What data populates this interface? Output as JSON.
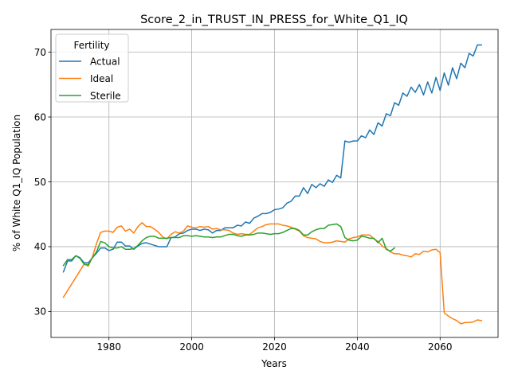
{
  "chart_data": {
    "type": "line",
    "title": "Score_2_in_TRUST_IN_PRESS_for_White_Q1_IQ",
    "xlabel": "Years",
    "ylabel": "% of White Q1_IQ Population",
    "xlim": [
      1966,
      2074
    ],
    "ylim": [
      26,
      73.5
    ],
    "xticks": [
      1980,
      2000,
      2020,
      2040,
      2060
    ],
    "yticks": [
      30,
      40,
      50,
      60,
      70
    ],
    "grid": true,
    "legend": {
      "title": "Fertility",
      "placement": "top-left"
    },
    "series": [
      {
        "name": "Actual",
        "color": "#1f77b4",
        "points": [
          [
            1969,
            36.1
          ],
          [
            1970,
            37.8
          ],
          [
            1971,
            37.8
          ],
          [
            1972,
            38.6
          ],
          [
            1973,
            38.3
          ],
          [
            1974,
            37.5
          ],
          [
            1975,
            37.5
          ],
          [
            1976,
            38.3
          ],
          [
            1977,
            39.0
          ],
          [
            1978,
            39.8
          ],
          [
            1979,
            39.8
          ],
          [
            1980,
            39.4
          ],
          [
            1981,
            39.6
          ],
          [
            1982,
            40.7
          ],
          [
            1983,
            40.7
          ],
          [
            1984,
            40.1
          ],
          [
            1985,
            40.1
          ],
          [
            1986,
            39.6
          ],
          [
            1987,
            40.1
          ],
          [
            1988,
            40.5
          ],
          [
            1989,
            40.6
          ],
          [
            1990,
            40.4
          ],
          [
            1991,
            40.2
          ],
          [
            1992,
            40.0
          ],
          [
            1993,
            40.0
          ],
          [
            1994,
            40.0
          ],
          [
            1995,
            41.4
          ],
          [
            1996,
            41.5
          ],
          [
            1997,
            42.0
          ],
          [
            1998,
            42.1
          ],
          [
            1999,
            42.5
          ],
          [
            2000,
            42.7
          ],
          [
            2001,
            42.7
          ],
          [
            2002,
            42.5
          ],
          [
            2003,
            42.7
          ],
          [
            2004,
            42.6
          ],
          [
            2005,
            42.1
          ],
          [
            2006,
            42.5
          ],
          [
            2007,
            42.5
          ],
          [
            2008,
            42.9
          ],
          [
            2009,
            42.9
          ],
          [
            2010,
            42.9
          ],
          [
            2011,
            43.3
          ],
          [
            2012,
            43.2
          ],
          [
            2013,
            43.8
          ],
          [
            2014,
            43.6
          ],
          [
            2015,
            44.4
          ],
          [
            2016,
            44.7
          ],
          [
            2017,
            45.1
          ],
          [
            2018,
            45.1
          ],
          [
            2019,
            45.3
          ],
          [
            2020,
            45.7
          ],
          [
            2021,
            45.8
          ],
          [
            2022,
            46.0
          ],
          [
            2023,
            46.7
          ],
          [
            2024,
            47.0
          ],
          [
            2025,
            47.8
          ],
          [
            2026,
            47.8
          ],
          [
            2027,
            49.1
          ],
          [
            2028,
            48.2
          ],
          [
            2029,
            49.6
          ],
          [
            2030,
            49.1
          ],
          [
            2031,
            49.7
          ],
          [
            2032,
            49.3
          ],
          [
            2033,
            50.3
          ],
          [
            2034,
            49.9
          ],
          [
            2035,
            51.0
          ],
          [
            2036,
            50.6
          ],
          [
            2037,
            56.3
          ],
          [
            2038,
            56.1
          ],
          [
            2039,
            56.3
          ],
          [
            2040,
            56.3
          ],
          [
            2041,
            57.1
          ],
          [
            2042,
            56.8
          ],
          [
            2043,
            58.0
          ],
          [
            2044,
            57.3
          ],
          [
            2045,
            59.1
          ],
          [
            2046,
            58.6
          ],
          [
            2047,
            60.5
          ],
          [
            2048,
            60.2
          ],
          [
            2049,
            62.2
          ],
          [
            2050,
            61.8
          ],
          [
            2051,
            63.7
          ],
          [
            2052,
            63.2
          ],
          [
            2053,
            64.6
          ],
          [
            2054,
            63.8
          ],
          [
            2055,
            65.0
          ],
          [
            2056,
            63.4
          ],
          [
            2057,
            65.4
          ],
          [
            2058,
            63.7
          ],
          [
            2059,
            66.1
          ],
          [
            2060,
            64.1
          ],
          [
            2061,
            66.8
          ],
          [
            2062,
            64.9
          ],
          [
            2063,
            67.6
          ],
          [
            2064,
            65.9
          ],
          [
            2065,
            68.3
          ],
          [
            2066,
            67.6
          ],
          [
            2067,
            69.8
          ],
          [
            2068,
            69.4
          ],
          [
            2069,
            71.1
          ],
          [
            2070,
            71.1
          ]
        ]
      },
      {
        "name": "Ideal",
        "color": "#ff7f0e",
        "points": [
          [
            1969,
            32.2
          ],
          [
            1974,
            37.3
          ],
          [
            1975,
            37.0
          ],
          [
            1976,
            38.4
          ],
          [
            1977,
            40.5
          ],
          [
            1978,
            42.2
          ],
          [
            1979,
            42.4
          ],
          [
            1980,
            42.4
          ],
          [
            1981,
            42.2
          ],
          [
            1982,
            43.0
          ],
          [
            1983,
            43.2
          ],
          [
            1984,
            42.4
          ],
          [
            1985,
            42.7
          ],
          [
            1986,
            42.1
          ],
          [
            1987,
            43.1
          ],
          [
            1988,
            43.7
          ],
          [
            1989,
            43.1
          ],
          [
            1990,
            43.1
          ],
          [
            1991,
            42.7
          ],
          [
            1992,
            42.2
          ],
          [
            1993,
            41.5
          ],
          [
            1994,
            41.2
          ],
          [
            1995,
            41.9
          ],
          [
            1996,
            42.3
          ],
          [
            1997,
            42.1
          ],
          [
            1998,
            42.4
          ],
          [
            1999,
            43.2
          ],
          [
            2000,
            43.0
          ],
          [
            2001,
            42.9
          ],
          [
            2002,
            43.1
          ],
          [
            2003,
            43.0
          ],
          [
            2004,
            43.1
          ],
          [
            2005,
            42.7
          ],
          [
            2006,
            42.8
          ],
          [
            2007,
            42.6
          ],
          [
            2008,
            42.6
          ],
          [
            2009,
            42.5
          ],
          [
            2010,
            42.1
          ],
          [
            2011,
            41.9
          ],
          [
            2012,
            42.0
          ],
          [
            2013,
            41.9
          ],
          [
            2014,
            41.9
          ],
          [
            2015,
            42.4
          ],
          [
            2016,
            42.9
          ],
          [
            2017,
            43.1
          ],
          [
            2018,
            43.4
          ],
          [
            2019,
            43.5
          ],
          [
            2020,
            43.5
          ],
          [
            2021,
            43.5
          ],
          [
            2022,
            43.3
          ],
          [
            2023,
            43.2
          ],
          [
            2024,
            43.0
          ],
          [
            2025,
            42.7
          ],
          [
            2026,
            42.4
          ],
          [
            2027,
            41.7
          ],
          [
            2028,
            41.4
          ],
          [
            2029,
            41.3
          ],
          [
            2030,
            41.2
          ],
          [
            2031,
            40.8
          ],
          [
            2032,
            40.6
          ],
          [
            2033,
            40.6
          ],
          [
            2034,
            40.7
          ],
          [
            2035,
            40.9
          ],
          [
            2036,
            40.8
          ],
          [
            2037,
            40.7
          ],
          [
            2038,
            41.2
          ],
          [
            2039,
            41.4
          ],
          [
            2040,
            41.5
          ],
          [
            2041,
            41.8
          ],
          [
            2042,
            41.8
          ],
          [
            2043,
            41.8
          ],
          [
            2044,
            41.2
          ],
          [
            2045,
            40.8
          ],
          [
            2046,
            40.1
          ],
          [
            2047,
            39.7
          ],
          [
            2048,
            39.2
          ],
          [
            2049,
            38.9
          ],
          [
            2050,
            38.9
          ],
          [
            2051,
            38.7
          ],
          [
            2052,
            38.6
          ],
          [
            2053,
            38.4
          ],
          [
            2054,
            38.9
          ],
          [
            2055,
            38.8
          ],
          [
            2056,
            39.3
          ],
          [
            2057,
            39.2
          ],
          [
            2058,
            39.5
          ],
          [
            2059,
            39.6
          ],
          [
            2060,
            39.1
          ],
          [
            2061,
            29.8
          ],
          [
            2062,
            29.3
          ],
          [
            2063,
            28.9
          ],
          [
            2064,
            28.6
          ],
          [
            2065,
            28.1
          ],
          [
            2066,
            28.3
          ],
          [
            2067,
            28.3
          ],
          [
            2068,
            28.4
          ],
          [
            2069,
            28.7
          ],
          [
            2070,
            28.6
          ]
        ]
      },
      {
        "name": "Sterile",
        "color": "#2ca02c",
        "points": [
          [
            1969,
            37.1
          ],
          [
            1970,
            38.0
          ],
          [
            1971,
            38.0
          ],
          [
            1972,
            38.6
          ],
          [
            1973,
            38.2
          ],
          [
            1974,
            37.3
          ],
          [
            1975,
            37.2
          ],
          [
            1976,
            38.3
          ],
          [
            1977,
            39.2
          ],
          [
            1978,
            40.8
          ],
          [
            1979,
            40.6
          ],
          [
            1980,
            40.0
          ],
          [
            1981,
            39.8
          ],
          [
            1982,
            39.8
          ],
          [
            1983,
            40.0
          ],
          [
            1984,
            39.6
          ],
          [
            1985,
            39.6
          ],
          [
            1986,
            39.7
          ],
          [
            1987,
            40.2
          ],
          [
            1988,
            40.9
          ],
          [
            1989,
            41.4
          ],
          [
            1990,
            41.6
          ],
          [
            1991,
            41.6
          ],
          [
            1992,
            41.3
          ],
          [
            1993,
            41.3
          ],
          [
            1994,
            41.3
          ],
          [
            1995,
            41.4
          ],
          [
            1996,
            41.4
          ],
          [
            1997,
            41.4
          ],
          [
            1998,
            41.7
          ],
          [
            1999,
            41.7
          ],
          [
            2000,
            41.6
          ],
          [
            2001,
            41.7
          ],
          [
            2002,
            41.6
          ],
          [
            2003,
            41.5
          ],
          [
            2004,
            41.5
          ],
          [
            2005,
            41.4
          ],
          [
            2006,
            41.5
          ],
          [
            2007,
            41.5
          ],
          [
            2008,
            41.7
          ],
          [
            2009,
            41.9
          ],
          [
            2010,
            41.9
          ],
          [
            2011,
            41.7
          ],
          [
            2012,
            41.6
          ],
          [
            2013,
            41.8
          ],
          [
            2014,
            41.8
          ],
          [
            2015,
            41.9
          ],
          [
            2016,
            42.1
          ],
          [
            2017,
            42.1
          ],
          [
            2018,
            42.0
          ],
          [
            2019,
            41.9
          ],
          [
            2020,
            42.0
          ],
          [
            2021,
            42.0
          ],
          [
            2022,
            42.2
          ],
          [
            2023,
            42.5
          ],
          [
            2024,
            42.8
          ],
          [
            2025,
            42.8
          ],
          [
            2026,
            42.5
          ],
          [
            2027,
            41.8
          ],
          [
            2028,
            41.8
          ],
          [
            2029,
            42.3
          ],
          [
            2030,
            42.6
          ],
          [
            2031,
            42.8
          ],
          [
            2032,
            42.8
          ],
          [
            2033,
            43.3
          ],
          [
            2034,
            43.4
          ],
          [
            2035,
            43.5
          ],
          [
            2036,
            43.1
          ],
          [
            2037,
            41.4
          ],
          [
            2038,
            41.0
          ],
          [
            2039,
            40.9
          ],
          [
            2040,
            41.0
          ],
          [
            2041,
            41.6
          ],
          [
            2042,
            41.5
          ],
          [
            2043,
            41.3
          ],
          [
            2044,
            41.3
          ],
          [
            2045,
            40.6
          ],
          [
            2046,
            41.3
          ],
          [
            2047,
            39.6
          ],
          [
            2048,
            39.3
          ],
          [
            2049,
            39.8
          ]
        ]
      }
    ]
  }
}
